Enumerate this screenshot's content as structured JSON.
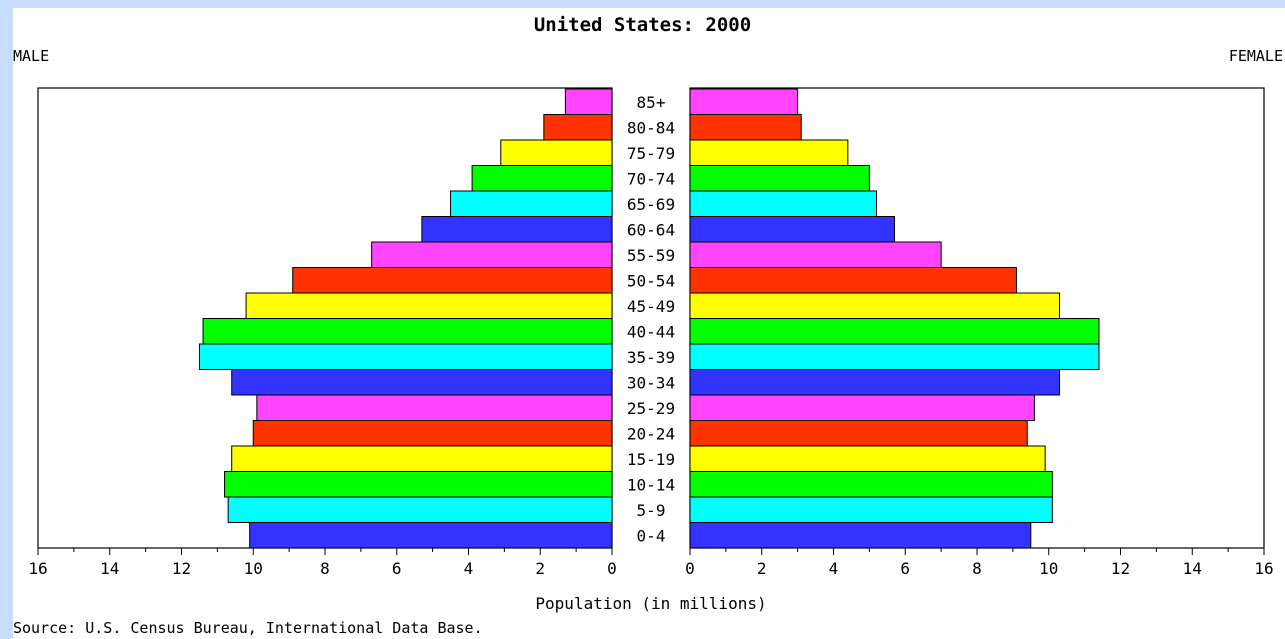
{
  "chart_data": {
    "type": "bar",
    "title": "United States: 2000",
    "left_label": "MALE",
    "right_label": "FEMALE",
    "xlabel": "Population (in millions)",
    "source": "Source: U.S. Census Bureau, International Data Base.",
    "categories": [
      "85+",
      "80-84",
      "75-79",
      "70-74",
      "65-69",
      "60-64",
      "55-59",
      "50-54",
      "45-49",
      "40-44",
      "35-39",
      "30-34",
      "25-29",
      "20-24",
      "15-19",
      "10-14",
      "5-9",
      "0-4"
    ],
    "series": [
      {
        "name": "MALE",
        "values": [
          1.3,
          1.9,
          3.1,
          3.9,
          4.5,
          5.3,
          6.7,
          8.9,
          10.2,
          11.4,
          11.5,
          10.6,
          9.9,
          10.0,
          10.6,
          10.8,
          10.7,
          10.1
        ]
      },
      {
        "name": "FEMALE",
        "values": [
          3.0,
          3.1,
          4.4,
          5.0,
          5.2,
          5.7,
          7.0,
          9.1,
          10.3,
          11.4,
          11.4,
          10.3,
          9.6,
          9.4,
          9.9,
          10.1,
          10.1,
          9.5
        ]
      }
    ],
    "bar_colors": [
      "#ff44ff",
      "#ff3300",
      "#ffff00",
      "#00ff00",
      "#00ffff",
      "#3333ff"
    ],
    "xlim": [
      0,
      16
    ],
    "ticks": [
      16,
      14,
      12,
      10,
      8,
      6,
      4,
      2,
      0
    ],
    "right_ticks": [
      0,
      2,
      4,
      6,
      8,
      10,
      12,
      14,
      16
    ],
    "grid": false
  }
}
